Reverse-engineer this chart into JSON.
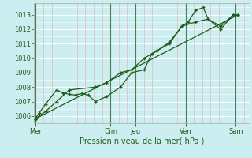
{
  "xlabel": "Pression niveau de la mer( hPa )",
  "bg_color": "#cceef0",
  "grid_h_color": "#ffffff",
  "grid_v_minor_color": "#ddbbbb",
  "grid_v_major_color": "#448844",
  "line_color": "#1a5c1a",
  "ylim": [
    1005.5,
    1013.8
  ],
  "yticks": [
    1006,
    1007,
    1008,
    1009,
    1010,
    1011,
    1012,
    1013
  ],
  "day_labels": [
    "Mer",
    "Dim",
    "Jeu",
    "Ven",
    "Sam"
  ],
  "day_positions": [
    0.0,
    3.0,
    4.0,
    6.0,
    8.0
  ],
  "xlim": [
    -0.05,
    8.55
  ],
  "series1_x": [
    0.0,
    0.15,
    0.4,
    0.85,
    1.1,
    1.35,
    1.6,
    1.85,
    2.1,
    2.4,
    2.85,
    3.4,
    3.85,
    4.35,
    4.65,
    4.85,
    5.35,
    5.85,
    6.1,
    6.4,
    6.7,
    6.9,
    7.4,
    7.9,
    8.1
  ],
  "series1_y": [
    1005.8,
    1006.2,
    1006.8,
    1007.8,
    1007.6,
    1007.5,
    1007.45,
    1007.55,
    1007.45,
    1007.0,
    1007.35,
    1008.0,
    1009.0,
    1009.2,
    1010.3,
    1010.5,
    1011.0,
    1012.2,
    1012.5,
    1013.3,
    1013.5,
    1012.7,
    1012.0,
    1013.0,
    1013.0
  ],
  "series2_x": [
    0.0,
    0.4,
    0.85,
    1.35,
    2.4,
    2.85,
    3.4,
    3.85,
    4.35,
    4.85,
    5.35,
    5.85,
    6.4,
    6.9,
    7.4,
    7.9,
    8.1
  ],
  "series2_y": [
    1005.8,
    1006.3,
    1007.0,
    1007.8,
    1008.0,
    1008.3,
    1009.0,
    1009.2,
    1010.0,
    1010.5,
    1011.1,
    1012.2,
    1012.5,
    1012.7,
    1012.2,
    1013.0,
    1013.0
  ],
  "series3_x": [
    0.0,
    8.1
  ],
  "series3_y": [
    1005.8,
    1013.0
  ],
  "minor_vlines": [
    0.333,
    0.667,
    1.0,
    1.333,
    1.667,
    2.0,
    2.333,
    2.667,
    3.333,
    3.667,
    4.333,
    4.667,
    5.0,
    5.333,
    5.667,
    6.333,
    6.667,
    7.0,
    7.333,
    7.667,
    8.333
  ],
  "major_vlines": [
    0.0,
    3.0,
    4.0,
    6.0,
    8.0
  ]
}
